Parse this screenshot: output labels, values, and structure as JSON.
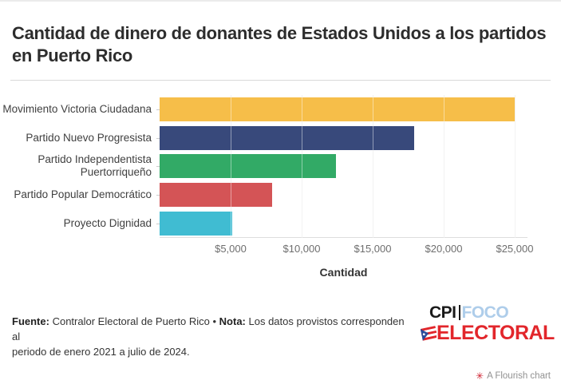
{
  "chart_data": {
    "type": "bar",
    "orientation": "horizontal",
    "title": "Cantidad de dinero de donantes de Estados Unidos a los partidos en Puerto Rico",
    "categories": [
      "Movimiento Victoria Ciudadana",
      "Partido Nuevo Progresista",
      "Partido Independentista Puertorriqueño",
      "Partido Popular Democrático",
      "Proyecto Dignidad"
    ],
    "values": [
      25000,
      17900,
      12400,
      7900,
      5100
    ],
    "bar_colors": [
      "#F6BE49",
      "#38497B",
      "#32AA66",
      "#D45456",
      "#40BCD2"
    ],
    "xlabel": "Cantidad",
    "ylabel": "",
    "xlim": [
      0,
      25900
    ],
    "ticks": [
      5000,
      10000,
      15000,
      20000,
      25000
    ],
    "tick_labels": [
      "$5,000",
      "$10,000",
      "$15,000",
      "$20,000",
      "$25,000"
    ],
    "grid": true,
    "legend": false,
    "currency": "USD"
  },
  "footer": {
    "source_label": "Fuente:",
    "source_text": "Contralor Electoral de Puerto Rico",
    "separator": "•",
    "note_label": "Nota:",
    "note_line1": "Los datos provistos corresponden al",
    "note_line2": "periodo de enero 2021 a julio de 2024."
  },
  "logo": {
    "part1": "CPI",
    "part2": "FOCO",
    "part3": "ELECTORAL",
    "color_black": "#1a1a1a",
    "color_blue": "#aecdea",
    "color_red": "#e2262b",
    "flag_icon": "puerto-rico-flag-icon"
  },
  "attribution": {
    "text": "A Flourish chart",
    "icon": "flourish-burst-icon",
    "icon_glyph": "✳",
    "icon_color": "#cf202e"
  }
}
